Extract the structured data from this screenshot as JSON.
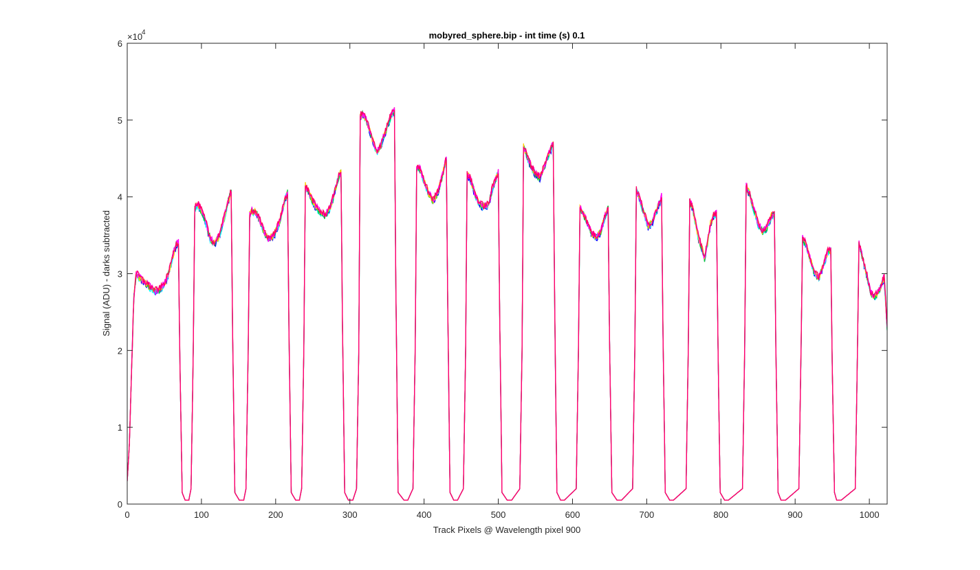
{
  "chart_data": {
    "type": "line",
    "title": "mobyred_sphere.bip - int time (s) 0.1",
    "xlabel": "Track Pixels @ Wavelength pixel 900",
    "ylabel": "Signal (ADU) - darks subtracted",
    "exponent_label": "×10",
    "exponent_power": "4",
    "xlim": [
      0,
      1024
    ],
    "ylim": [
      0,
      60000
    ],
    "xticks": [
      0,
      100,
      200,
      300,
      400,
      500,
      600,
      700,
      800,
      900,
      1000
    ],
    "xtick_labels": [
      "0",
      "100",
      "200",
      "300",
      "400",
      "500",
      "600",
      "700",
      "800",
      "900",
      "1000"
    ],
    "yticks": [
      0,
      10000,
      20000,
      30000,
      40000,
      50000,
      60000
    ],
    "ytick_labels": [
      "0",
      "1",
      "2",
      "3",
      "4",
      "5",
      "6"
    ],
    "grid": false,
    "box": true,
    "series_colors": [
      "#0000ff",
      "#00ffff",
      "#00cc33",
      "#ffcc00",
      "#ff00ff",
      "#ff0066"
    ],
    "plateaus": [
      {
        "x": [
          12,
          16,
          22,
          30,
          38,
          45,
          52,
          58,
          62,
          66,
          69
        ],
        "y": [
          30000,
          29500,
          29000,
          28300,
          27700,
          28000,
          29000,
          30800,
          32500,
          33800,
          34000
        ]
      },
      {
        "x": [
          91,
          95,
          100,
          106,
          112,
          118,
          124,
          130,
          136,
          140
        ],
        "y": [
          38500,
          39000,
          38200,
          36600,
          34500,
          33800,
          35000,
          37000,
          39500,
          40700
        ]
      },
      {
        "x": [
          165,
          168,
          175,
          182,
          190,
          198,
          206,
          212,
          216
        ],
        "y": [
          37800,
          38200,
          37800,
          36000,
          34500,
          35000,
          37000,
          39500,
          40600
        ]
      },
      {
        "x": [
          240,
          245,
          252,
          260,
          267,
          275,
          283,
          288
        ],
        "y": [
          41500,
          40500,
          39000,
          38000,
          37500,
          39000,
          42000,
          43300
        ]
      },
      {
        "x": [
          314,
          318,
          324,
          330,
          336,
          342,
          348,
          354,
          360
        ],
        "y": [
          50500,
          50800,
          49500,
          47500,
          45800,
          46800,
          48500,
          50200,
          51300
        ]
      },
      {
        "x": [
          390,
          394,
          400,
          406,
          412,
          418,
          424,
          430
        ],
        "y": [
          43500,
          43800,
          42000,
          40500,
          39500,
          40500,
          42500,
          45000
        ]
      },
      {
        "x": [
          458,
          462,
          468,
          474,
          480,
          487,
          493,
          500
        ],
        "y": [
          42800,
          42500,
          40500,
          39200,
          38700,
          39000,
          41500,
          43200
        ]
      },
      {
        "x": [
          534,
          538,
          544,
          550,
          556,
          562,
          568,
          574
        ],
        "y": [
          46500,
          45500,
          44000,
          43000,
          42500,
          44000,
          45500,
          47000
        ]
      },
      {
        "x": [
          610,
          614,
          620,
          626,
          632,
          638,
          644,
          648
        ],
        "y": [
          38500,
          38000,
          36500,
          35200,
          34700,
          35500,
          37500,
          38500
        ]
      },
      {
        "x": [
          686,
          690,
          696,
          702,
          708,
          714,
          720
        ],
        "y": [
          40800,
          40000,
          38000,
          36200,
          36800,
          38500,
          40000
        ]
      },
      {
        "x": [
          758,
          762,
          766,
          770,
          774,
          778,
          782,
          786,
          790,
          794
        ],
        "y": [
          39500,
          38500,
          36500,
          34500,
          33500,
          32000,
          34000,
          36500,
          37500,
          37800
        ]
      },
      {
        "x": [
          834,
          838,
          844,
          850,
          856,
          862,
          868,
          872
        ],
        "y": [
          41300,
          40500,
          38500,
          36500,
          35500,
          36000,
          37500,
          37800
        ]
      },
      {
        "x": [
          910,
          914,
          920,
          926,
          932,
          938,
          944,
          948
        ],
        "y": [
          34500,
          34000,
          32000,
          30000,
          29500,
          31000,
          32800,
          33000
        ]
      },
      {
        "x": [
          986,
          990,
          996,
          1002,
          1008,
          1014,
          1020,
          1024
        ],
        "y": [
          34000,
          32500,
          30000,
          27500,
          27000,
          28000,
          29500,
          23000
        ]
      }
    ],
    "gaps": [
      {
        "from": 69,
        "min_start": 78,
        "min_end": 83,
        "to": 91
      },
      {
        "from": 140,
        "min_start": 151,
        "min_end": 157,
        "to": 165
      },
      {
        "from": 216,
        "min_start": 227,
        "min_end": 232,
        "to": 240
      },
      {
        "from": 288,
        "min_start": 298,
        "min_end": 304,
        "to": 314
      },
      {
        "from": 360,
        "min_start": 373,
        "min_end": 378,
        "to": 390
      },
      {
        "from": 430,
        "min_start": 440,
        "min_end": 445,
        "to": 458
      },
      {
        "from": 500,
        "min_start": 512,
        "min_end": 518,
        "to": 534
      },
      {
        "from": 574,
        "min_start": 584,
        "min_end": 589,
        "to": 610
      },
      {
        "from": 648,
        "min_start": 660,
        "min_end": 666,
        "to": 686
      },
      {
        "from": 720,
        "min_start": 731,
        "min_end": 736,
        "to": 758
      },
      {
        "from": 794,
        "min_start": 805,
        "min_end": 810,
        "to": 834
      },
      {
        "from": 872,
        "min_start": 881,
        "min_end": 887,
        "to": 910
      },
      {
        "from": 948,
        "min_start": 956,
        "min_end": 962,
        "to": 986
      }
    ],
    "start": {
      "x": [
        0,
        3,
        6,
        9,
        12
      ],
      "y": [
        3000,
        8000,
        18000,
        27000,
        30000
      ]
    },
    "floor_value": 500
  }
}
